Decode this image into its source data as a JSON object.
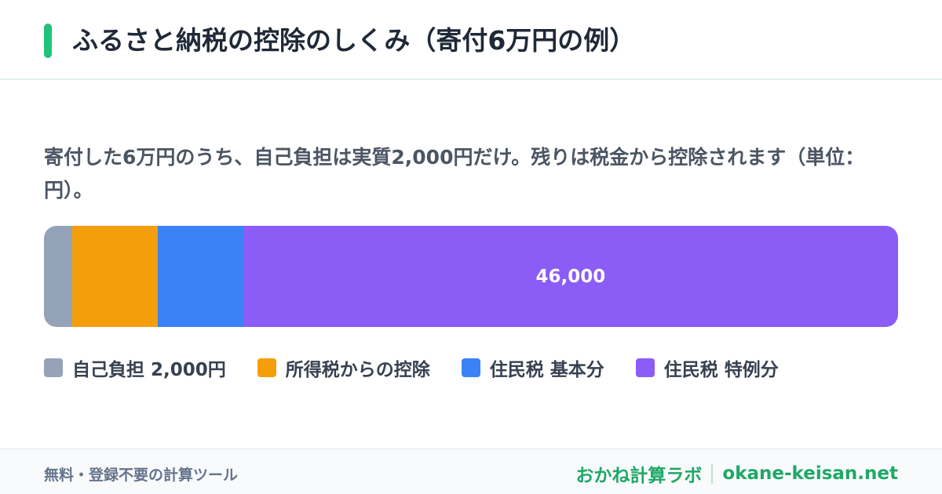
{
  "chart_data": {
    "type": "stacked-bar",
    "title": "ふるさと納税の控除のしくみ（寄付6万円の例）",
    "subtitle": "寄付した6万円のうち、自己負担は実質2,000円だけ。残りは税金から控除されます（単位：円）。",
    "series": [
      {
        "name": "自己負担 2,000円",
        "color": "#94a3b8",
        "values": [
          2000
        ]
      },
      {
        "name": "所得税からの控除",
        "color": "#f59e0b",
        "values": [
          6000
        ]
      },
      {
        "name": "住民税 基本分",
        "color": "#3b82f6",
        "values": [
          6000
        ]
      },
      {
        "name": "住民税 特例分",
        "color": "#8b5cf6",
        "values": [
          46000
        ],
        "value_labels": [
          "46,000"
        ]
      }
    ]
  },
  "footer": {
    "note": "無料・登録不要の計算ツール",
    "brand": "おかね計算ラボ",
    "site": "okane-keisan.net"
  }
}
